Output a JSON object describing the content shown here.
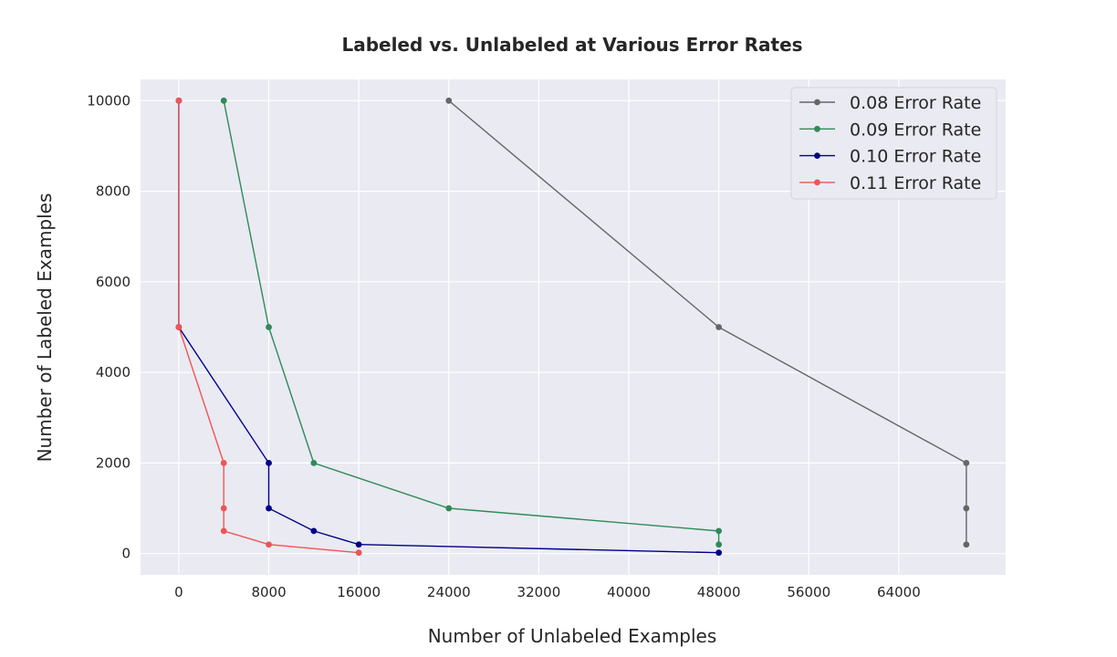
{
  "chart_data": {
    "type": "line",
    "title": "Labeled vs. Unlabeled at Various Error Rates",
    "xlabel": "Number of Unlabeled Examples",
    "ylabel": "Number of Labeled Examples",
    "xlim": [
      -3400,
      73500
    ],
    "ylim": [
      -470,
      10470
    ],
    "xticks": [
      0,
      8000,
      16000,
      24000,
      32000,
      40000,
      48000,
      56000,
      64000
    ],
    "yticks": [
      0,
      2000,
      4000,
      6000,
      8000,
      10000
    ],
    "grid": true,
    "legend_position": "top-right",
    "series": [
      {
        "name": "0.08 Error Rate",
        "color": "#666666",
        "points": [
          [
            24000,
            10000
          ],
          [
            48000,
            5000
          ],
          [
            70000,
            2000
          ],
          [
            70000,
            1000
          ],
          [
            70000,
            200
          ]
        ]
      },
      {
        "name": "0.09 Error Rate",
        "color": "#2e8b57",
        "points": [
          [
            4000,
            10000
          ],
          [
            8000,
            5000
          ],
          [
            12000,
            2000
          ],
          [
            24000,
            1000
          ],
          [
            48000,
            500
          ],
          [
            48000,
            200
          ]
        ]
      },
      {
        "name": "0.10 Error Rate",
        "color": "#00008b",
        "points": [
          [
            0,
            10000
          ],
          [
            0,
            5000
          ],
          [
            8000,
            2000
          ],
          [
            8000,
            1000
          ],
          [
            12000,
            500
          ],
          [
            16000,
            200
          ],
          [
            48000,
            20
          ]
        ]
      },
      {
        "name": "0.11 Error Rate",
        "color": "#f05454",
        "points": [
          [
            0,
            10000
          ],
          [
            0,
            5000
          ],
          [
            4000,
            2000
          ],
          [
            4000,
            1000
          ],
          [
            4000,
            500
          ],
          [
            8000,
            200
          ],
          [
            16000,
            20
          ]
        ]
      }
    ]
  }
}
